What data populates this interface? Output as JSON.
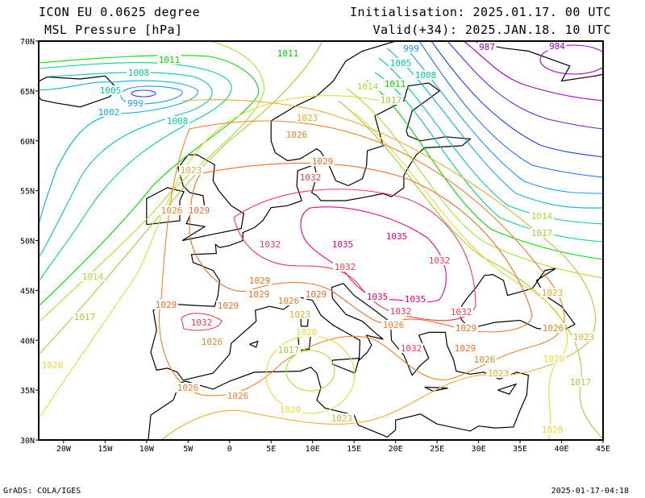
{
  "header": {
    "model": "ICON EU 0.0625 degree",
    "field": "MSL Pressure [hPa]",
    "init": "Initialisation: 2025.01.17. 00 UTC",
    "valid": "Valid(+34): 2025.JAN.18. 10 UTC"
  },
  "axes": {
    "lat_labels": [
      "70N",
      "65N",
      "60N",
      "55N",
      "50N",
      "45N",
      "40N",
      "35N",
      "30N"
    ],
    "lon_labels": [
      "20W",
      "15W",
      "10W",
      "5W",
      "0",
      "5E",
      "10E",
      "15E",
      "20E",
      "25E",
      "30E",
      "35E",
      "40E",
      "45E"
    ]
  },
  "footer": {
    "left": "GrADS: COLA/IGES",
    "right": "2025-01-17-04:18"
  },
  "colors": {
    "984": "#a000c8",
    "987": "#a000c8",
    "990": "#6e1edc",
    "993": "#1e3cff",
    "996": "#1e6eff",
    "999": "#1e96ff",
    "1002": "#00b4dc",
    "1005": "#00c8b4",
    "1008": "#00d28c",
    "1011": "#00dc00",
    "1014": "#a0e632",
    "1017": "#a0d232",
    "1020": "#e6dc32",
    "1023": "#e6af2d",
    "1026": "#f08228",
    "1029": "#f06e28",
    "1032": "#f03c50",
    "1035": "#f00082"
  },
  "contour_labels": [
    "1011",
    "1008",
    "1005",
    "999",
    "1002",
    "1008",
    "1011",
    "999",
    "987",
    "984",
    "1005",
    "1008",
    "1011",
    "1014",
    "1017",
    "1023",
    "1026",
    "1029",
    "1032",
    "1023",
    "1026",
    "1029",
    "1032",
    "1035",
    "1035",
    "1032",
    "1032",
    "1029",
    "1029",
    "1029",
    "1029",
    "1032",
    "1026",
    "1026",
    "1029",
    "1023",
    "1020",
    "1017",
    "1026",
    "1026",
    "1020",
    "1023",
    "1035",
    "1035",
    "1032",
    "1032",
    "1026",
    "1032",
    "1029",
    "1026",
    "1023",
    "1029",
    "1026",
    "1023",
    "1020",
    "1017",
    "1023",
    "1020",
    "1014",
    "1017",
    "1014",
    "1017",
    "1020"
  ]
}
